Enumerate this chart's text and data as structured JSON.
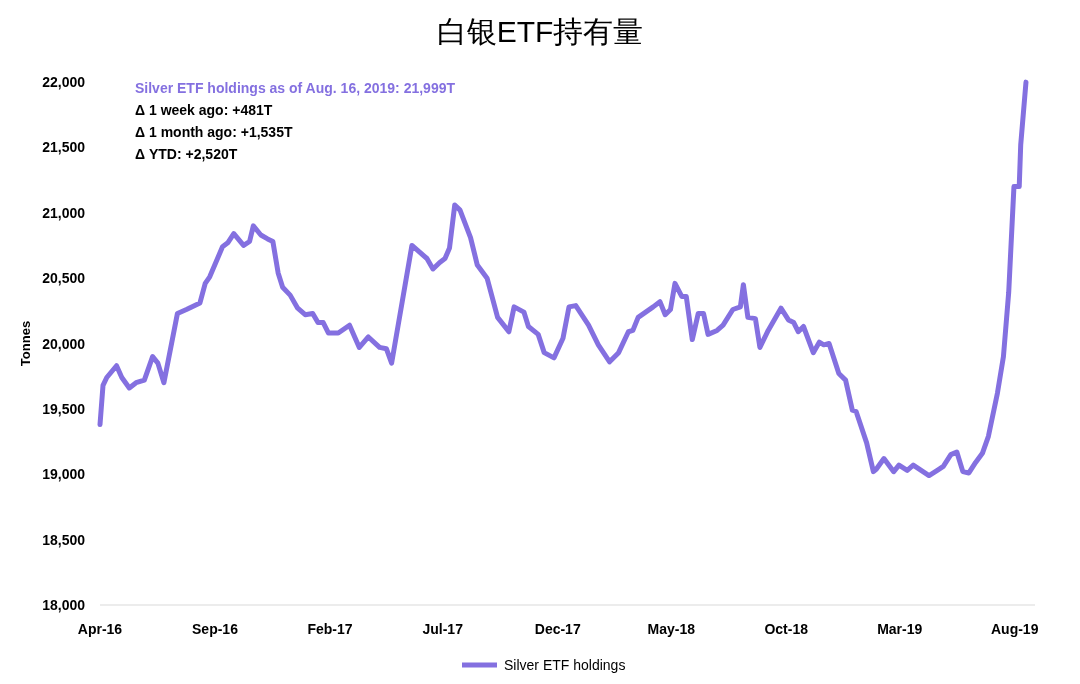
{
  "chart_data": {
    "type": "line",
    "title": "白银ETF持有量",
    "ylabel": "Tonnes",
    "annotations": [
      "Silver ETF holdings as of  Aug. 16, 2019: 21,999T",
      "Δ 1 week ago: +481T",
      "Δ 1 month ago: +1,535T",
      "Δ YTD: +2,520T"
    ],
    "xticks": [
      {
        "value": "2016-04-01",
        "label": "Apr-16"
      },
      {
        "value": "2016-09-01",
        "label": "Sep-16"
      },
      {
        "value": "2017-02-01",
        "label": "Feb-17"
      },
      {
        "value": "2017-07-01",
        "label": "Jul-17"
      },
      {
        "value": "2017-12-01",
        "label": "Dec-17"
      },
      {
        "value": "2018-05-01",
        "label": "May-18"
      },
      {
        "value": "2018-10-01",
        "label": "Oct-18"
      },
      {
        "value": "2019-03-01",
        "label": "Mar-19"
      },
      {
        "value": "2019-08-01",
        "label": "Aug-19"
      }
    ],
    "xlim": [
      "2016-04-01",
      "2019-08-28"
    ],
    "ylim": [
      18000,
      22000
    ],
    "yticks": [
      {
        "value": 18000,
        "label": "18,000"
      },
      {
        "value": 18500,
        "label": "18,500"
      },
      {
        "value": 19000,
        "label": "19,000"
      },
      {
        "value": 19500,
        "label": "19,500"
      },
      {
        "value": 20000,
        "label": "20,000"
      },
      {
        "value": 20500,
        "label": "20,500"
      },
      {
        "value": 21000,
        "label": "21,000"
      },
      {
        "value": 21500,
        "label": "21,500"
      },
      {
        "value": 22000,
        "label": "22,000"
      }
    ],
    "grid": false,
    "legend": "bottom",
    "marker": "none",
    "line_style": "solid",
    "series": [
      {
        "name": "Silver ETF holdings",
        "color": "#8470e0",
        "x": [
          "2016-04-01",
          "2016-04-05",
          "2016-04-10",
          "2016-04-23",
          "2016-04-30",
          "2016-05-10",
          "2016-05-19",
          "2016-05-30",
          "2016-06-10",
          "2016-06-17",
          "2016-06-25",
          "2016-07-13",
          "2016-07-25",
          "2016-08-12",
          "2016-08-19",
          "2016-08-25",
          "2016-09-11",
          "2016-09-18",
          "2016-09-26",
          "2016-10-09",
          "2016-10-17",
          "2016-10-22",
          "2016-11-01",
          "2016-11-10",
          "2016-11-17",
          "2016-11-24",
          "2016-11-30",
          "2016-12-10",
          "2016-12-20",
          "2016-12-30",
          "2017-01-09",
          "2017-01-16",
          "2017-01-23",
          "2017-01-30",
          "2017-02-12",
          "2017-02-27",
          "2017-03-12",
          "2017-03-24",
          "2017-04-08",
          "2017-04-17",
          "2017-04-24",
          "2017-05-21",
          "2017-06-10",
          "2017-06-18",
          "2017-06-27",
          "2017-07-04",
          "2017-07-10",
          "2017-07-17",
          "2017-07-24",
          "2017-08-07",
          "2017-08-16",
          "2017-08-29",
          "2017-09-12",
          "2017-09-27",
          "2017-10-04",
          "2017-10-17",
          "2017-10-23",
          "2017-11-05",
          "2017-11-13",
          "2017-11-26",
          "2017-12-08",
          "2017-12-16",
          "2017-12-25",
          "2018-01-11",
          "2018-01-24",
          "2018-02-08",
          "2018-02-20",
          "2018-03-05",
          "2018-03-11",
          "2018-03-18",
          "2018-04-07",
          "2018-04-16",
          "2018-04-23",
          "2018-04-30",
          "2018-05-06",
          "2018-05-15",
          "2018-05-21",
          "2018-05-29",
          "2018-06-06",
          "2018-06-13",
          "2018-06-19",
          "2018-07-01",
          "2018-07-09",
          "2018-07-22",
          "2018-08-01",
          "2018-08-05",
          "2018-08-11",
          "2018-08-21",
          "2018-08-27",
          "2018-09-07",
          "2018-09-24",
          "2018-10-04",
          "2018-10-11",
          "2018-10-17",
          "2018-10-24",
          "2018-11-06",
          "2018-11-14",
          "2018-11-20",
          "2018-11-27",
          "2018-12-10",
          "2018-12-19",
          "2018-12-28",
          "2019-01-02",
          "2019-01-16",
          "2019-01-25",
          "2019-01-29",
          "2019-02-08",
          "2019-02-21",
          "2019-02-28",
          "2019-03-11",
          "2019-03-19",
          "2019-04-09",
          "2019-04-20",
          "2019-04-28",
          "2019-05-08",
          "2019-05-16",
          "2019-05-24",
          "2019-06-01",
          "2019-06-10",
          "2019-06-19",
          "2019-06-27",
          "2019-07-09",
          "2019-07-17",
          "2019-07-24",
          "2019-07-31",
          "2019-08-07",
          "2019-08-09",
          "2019-08-16"
        ],
        "values": [
          19380,
          19680,
          19740,
          19830,
          19740,
          19660,
          19700,
          19720,
          19900,
          19850,
          19700,
          20230,
          20260,
          20310,
          20460,
          20510,
          20740,
          20770,
          20840,
          20750,
          20780,
          20900,
          20830,
          20800,
          20780,
          20540,
          20430,
          20370,
          20270,
          20220,
          20230,
          20160,
          20160,
          20080,
          20080,
          20140,
          19970,
          20050,
          19970,
          19960,
          19850,
          20750,
          20650,
          20570,
          20620,
          20650,
          20730,
          21060,
          21020,
          20810,
          20600,
          20500,
          20200,
          20090,
          20280,
          20240,
          20130,
          20070,
          19930,
          19890,
          20040,
          20280,
          20290,
          20140,
          19990,
          19860,
          19930,
          20090,
          20100,
          20200,
          20280,
          20320,
          20220,
          20260,
          20460,
          20360,
          20360,
          20030,
          20230,
          20230,
          20070,
          20100,
          20140,
          20260,
          20280,
          20450,
          20200,
          20190,
          19970,
          20100,
          20270,
          20180,
          20160,
          20090,
          20130,
          19930,
          20010,
          19990,
          20000,
          19770,
          19720,
          19490,
          19480,
          19240,
          19020,
          19040,
          19120,
          19020,
          19070,
          19030,
          19070,
          18990,
          19030,
          19060,
          19150,
          19170,
          19020,
          19010,
          19090,
          19160,
          19290,
          19620,
          19900,
          20390,
          21200,
          21200,
          21520,
          21999
        ]
      }
    ]
  }
}
